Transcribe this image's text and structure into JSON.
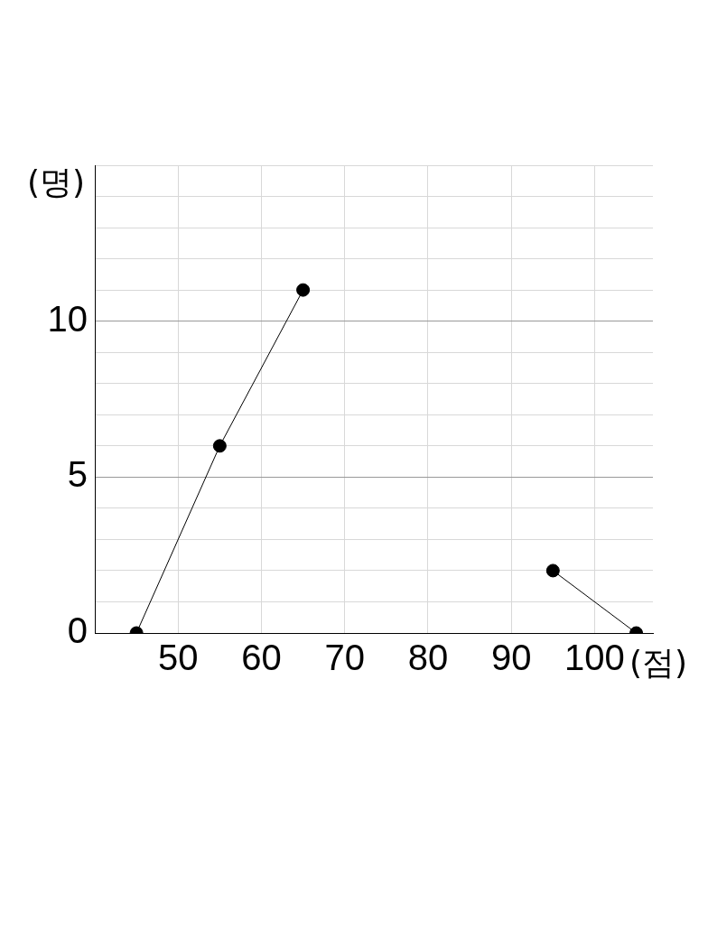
{
  "chart_data": {
    "type": "line",
    "xlabel": "(점)",
    "ylabel": "(명)",
    "x": [
      45,
      55,
      65,
      75,
      85,
      95,
      105
    ],
    "series": [
      {
        "color": "#000000",
        "values": [
          0,
          6,
          11,
          null,
          null,
          2,
          0
        ]
      }
    ],
    "xlim": [
      40,
      107
    ],
    "xticks": [
      50,
      60,
      70,
      80,
      90,
      100
    ],
    "ylim": [
      0,
      15
    ],
    "yticks": [
      0,
      {
        "value": 1,
        "label": null
      },
      {
        "value": 2,
        "label": null
      },
      {
        "value": 3,
        "label": null
      },
      {
        "value": 4,
        "label": null
      },
      5,
      {
        "value": 6,
        "label": null
      },
      {
        "value": 7,
        "label": null
      },
      {
        "value": 8,
        "label": null
      },
      {
        "value": 9,
        "label": null
      },
      10,
      {
        "value": 11,
        "label": null
      },
      {
        "value": 12,
        "label": null
      },
      {
        "value": 13,
        "label": null
      },
      {
        "value": 14,
        "label": null
      },
      {
        "value": 15,
        "label": null
      }
    ],
    "grid": true,
    "legend": false,
    "marker": "circle",
    "line_style": "solid"
  }
}
